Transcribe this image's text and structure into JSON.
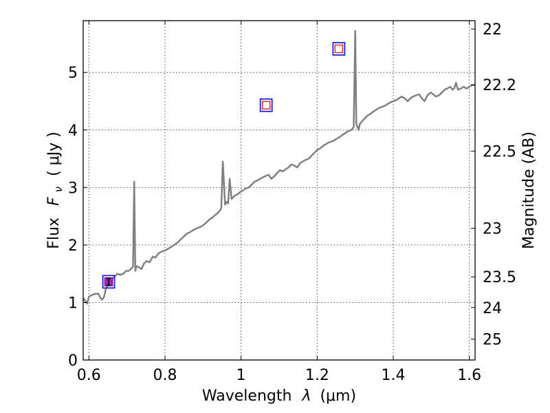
{
  "chart_data": {
    "type": "line",
    "xlabel": {
      "pre": "Wavelength",
      "sym": "λ",
      "unit": "(μm)"
    },
    "ylabel": {
      "pre": "Flux",
      "sym": "F",
      "sub": "ν",
      "unit": "( μJy )"
    },
    "y2label": "Magnitude (AB)",
    "xlim": [
      0.585,
      1.615
    ],
    "ylim": [
      0,
      5.9
    ],
    "x_ticks": [
      0.6,
      0.8,
      1.0,
      1.2,
      1.4,
      1.6
    ],
    "x_tick_labels": [
      "0.6",
      "0.8",
      "1",
      "1.2",
      "1.4",
      "1.6"
    ],
    "y_ticks": [
      0,
      1,
      2,
      3,
      4,
      5
    ],
    "y_tick_labels": [
      "0",
      "1",
      "2",
      "3",
      "4",
      "5"
    ],
    "y2_ticks": [
      22,
      22.2,
      22.5,
      23,
      23.5,
      24,
      25
    ],
    "y2_tick_labels": [
      "22",
      "22.2",
      "22.5",
      "23",
      "23.5",
      "24",
      "25"
    ],
    "grid": true,
    "series": [
      {
        "color": "#808080",
        "x": [
          0.585,
          0.595,
          0.6,
          0.605,
          0.612,
          0.618,
          0.625,
          0.63,
          0.635,
          0.64,
          0.645,
          0.65,
          0.655,
          0.66,
          0.668,
          0.675,
          0.682,
          0.69,
          0.698,
          0.705,
          0.71,
          0.713,
          0.716,
          0.719,
          0.722,
          0.725,
          0.73,
          0.738,
          0.745,
          0.752,
          0.76,
          0.768,
          0.775,
          0.782,
          0.79,
          0.798,
          0.805,
          0.812,
          0.82,
          0.828,
          0.835,
          0.842,
          0.85,
          0.858,
          0.865,
          0.872,
          0.88,
          0.888,
          0.895,
          0.902,
          0.91,
          0.918,
          0.925,
          0.932,
          0.938,
          0.942,
          0.945,
          0.948,
          0.952,
          0.958,
          0.962,
          0.966,
          0.97,
          0.975,
          0.982,
          0.99,
          0.998,
          1.005,
          1.012,
          1.02,
          1.028,
          1.035,
          1.042,
          1.05,
          1.058,
          1.065,
          1.072,
          1.08,
          1.088,
          1.095,
          1.102,
          1.11,
          1.118,
          1.125,
          1.132,
          1.14,
          1.148,
          1.155,
          1.162,
          1.17,
          1.178,
          1.185,
          1.192,
          1.2,
          1.208,
          1.215,
          1.222,
          1.23,
          1.238,
          1.245,
          1.252,
          1.26,
          1.268,
          1.275,
          1.282,
          1.29,
          1.296,
          1.3,
          1.303,
          1.306,
          1.309,
          1.312,
          1.318,
          1.325,
          1.332,
          1.34,
          1.348,
          1.355,
          1.362,
          1.37,
          1.378,
          1.385,
          1.392,
          1.4,
          1.408,
          1.415,
          1.422,
          1.43,
          1.438,
          1.445,
          1.452,
          1.46,
          1.468,
          1.475,
          1.482,
          1.49,
          1.498,
          1.505,
          1.512,
          1.52,
          1.528,
          1.535,
          1.542,
          1.55,
          1.556,
          1.56,
          1.565,
          1.57,
          1.578,
          1.585,
          1.592,
          1.6,
          1.607,
          1.615
        ],
        "y": [
          1.08,
          0.98,
          1.1,
          1.12,
          1.14,
          1.15,
          1.15,
          1.08,
          1.05,
          1.1,
          1.25,
          1.3,
          1.35,
          1.4,
          1.45,
          1.5,
          1.48,
          1.5,
          1.55,
          1.55,
          1.58,
          1.6,
          1.62,
          3.1,
          1.55,
          1.63,
          1.62,
          1.58,
          1.68,
          1.72,
          1.7,
          1.8,
          1.78,
          1.85,
          1.88,
          1.9,
          1.92,
          1.95,
          1.98,
          2.02,
          2.05,
          2.1,
          2.15,
          2.2,
          2.22,
          2.25,
          2.28,
          2.3,
          2.32,
          2.35,
          2.4,
          2.45,
          2.48,
          2.52,
          2.55,
          2.58,
          2.6,
          2.65,
          3.45,
          2.7,
          2.75,
          2.72,
          3.15,
          2.8,
          2.85,
          2.88,
          2.92,
          2.95,
          2.98,
          3.0,
          3.05,
          3.1,
          3.12,
          3.15,
          3.18,
          3.2,
          3.22,
          3.15,
          3.2,
          3.25,
          3.3,
          3.28,
          3.32,
          3.35,
          3.4,
          3.38,
          3.35,
          3.42,
          3.45,
          3.48,
          3.5,
          3.55,
          3.6,
          3.65,
          3.68,
          3.72,
          3.75,
          3.78,
          3.8,
          3.82,
          3.85,
          3.88,
          3.92,
          3.95,
          3.98,
          4.0,
          4.05,
          5.72,
          4.1,
          4.05,
          4.0,
          4.1,
          4.15,
          4.2,
          4.25,
          4.28,
          4.32,
          4.35,
          4.38,
          4.4,
          4.42,
          4.45,
          4.48,
          4.5,
          4.52,
          4.55,
          4.58,
          4.55,
          4.5,
          4.55,
          4.58,
          4.6,
          4.62,
          4.55,
          4.5,
          4.6,
          4.65,
          4.62,
          4.58,
          4.6,
          4.65,
          4.7,
          4.72,
          4.75,
          4.7,
          4.72,
          4.82,
          4.7,
          4.72,
          4.75,
          4.72,
          4.75,
          4.78,
          4.78
        ]
      }
    ],
    "photometry": [
      {
        "x": 0.652,
        "y": 1.36,
        "yerr": 0.06,
        "filled": true,
        "fill": "#9b27b0",
        "outline": "#2222dd"
      },
      {
        "x": 1.066,
        "y": 4.43,
        "filled": false,
        "inner": "#dd2222",
        "outline": "#2222dd"
      },
      {
        "x": 1.257,
        "y": 5.41,
        "filled": false,
        "inner": "#dd2222",
        "outline": "#2222dd"
      }
    ]
  }
}
